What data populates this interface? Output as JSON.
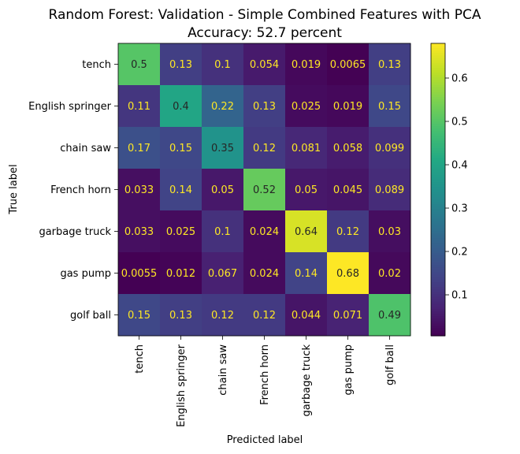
{
  "chart_data": {
    "type": "heatmap",
    "title_line1": "Random Forest: Validation - Simple Combined Features with PCA",
    "title_line2": "Accuracy: 52.7 percent",
    "xlabel": "Predicted label",
    "ylabel": "True label",
    "categories": [
      "tench",
      "English springer",
      "chain saw",
      "French horn",
      "garbage truck",
      "gas pump",
      "golf ball"
    ],
    "matrix": [
      [
        "0.5",
        "0.13",
        "0.1",
        "0.054",
        "0.019",
        "0.0065",
        "0.13"
      ],
      [
        "0.11",
        "0.4",
        "0.22",
        "0.13",
        "0.025",
        "0.019",
        "0.15"
      ],
      [
        "0.17",
        "0.15",
        "0.35",
        "0.12",
        "0.081",
        "0.058",
        "0.099"
      ],
      [
        "0.033",
        "0.14",
        "0.05",
        "0.52",
        "0.05",
        "0.045",
        "0.089"
      ],
      [
        "0.033",
        "0.025",
        "0.1",
        "0.024",
        "0.64",
        "0.12",
        "0.03"
      ],
      [
        "0.0055",
        "0.012",
        "0.067",
        "0.024",
        "0.14",
        "0.68",
        "0.02"
      ],
      [
        "0.15",
        "0.13",
        "0.12",
        "0.12",
        "0.044",
        "0.071",
        "0.49"
      ]
    ],
    "colormap": "viridis",
    "color_range": [
      0.0055,
      0.68
    ],
    "colorbar_ticks": [
      "0.1",
      "0.2",
      "0.3",
      "0.4",
      "0.5",
      "0.6"
    ],
    "label_color_dark": "#262626",
    "label_color_light": "#fde725"
  }
}
